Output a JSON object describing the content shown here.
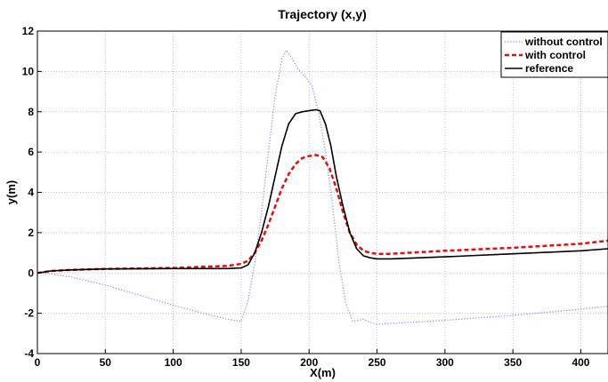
{
  "chart_data": {
    "type": "line",
    "title": "Trajectory (x,y)",
    "xlabel": "X(m)",
    "ylabel": "y(m)",
    "xlim": [
      0,
      420
    ],
    "ylim": [
      -4,
      12
    ],
    "xticks": [
      0,
      50,
      100,
      150,
      200,
      250,
      300,
      350,
      400
    ],
    "yticks": [
      -4,
      -2,
      0,
      2,
      4,
      6,
      8,
      10,
      12
    ],
    "grid": true,
    "legend_position": "top-right",
    "series": [
      {
        "name": "without control",
        "color": "#8a8ae6",
        "style": "dotted",
        "x": [
          0,
          10,
          25,
          50,
          75,
          100,
          125,
          140,
          150,
          155,
          160,
          165,
          170,
          175,
          180,
          183,
          187,
          192,
          197,
          202,
          207,
          212,
          217,
          222,
          227,
          232,
          240,
          245,
          250,
          260,
          300,
          350,
          400,
          420
        ],
        "y": [
          0,
          -0.05,
          -0.2,
          -0.6,
          -1.1,
          -1.6,
          -2.05,
          -2.3,
          -2.4,
          -1.4,
          0.5,
          3.0,
          6.0,
          8.8,
          10.6,
          11.05,
          10.7,
          10.1,
          9.75,
          9.3,
          8.0,
          6.0,
          3.5,
          0.5,
          -1.5,
          -2.4,
          -2.3,
          -2.45,
          -2.55,
          -2.5,
          -2.35,
          -2.1,
          -1.8,
          -1.65
        ]
      },
      {
        "name": "with control",
        "color": "#e01010",
        "style": "dashed",
        "x": [
          0,
          10,
          25,
          50,
          100,
          140,
          150,
          155,
          160,
          165,
          170,
          175,
          180,
          185,
          190,
          195,
          200,
          205,
          210,
          215,
          220,
          225,
          230,
          235,
          240,
          245,
          250,
          260,
          300,
          350,
          400,
          420
        ],
        "y": [
          0,
          0.1,
          0.15,
          0.2,
          0.25,
          0.35,
          0.45,
          0.6,
          1.0,
          1.6,
          2.4,
          3.3,
          4.2,
          4.9,
          5.4,
          5.7,
          5.8,
          5.85,
          5.75,
          5.2,
          4.2,
          3.0,
          2.0,
          1.4,
          1.1,
          1.0,
          0.95,
          0.95,
          1.1,
          1.25,
          1.45,
          1.6
        ]
      },
      {
        "name": "reference",
        "color": "#000000",
        "style": "solid",
        "x": [
          0,
          10,
          25,
          50,
          100,
          140,
          150,
          155,
          160,
          165,
          170,
          175,
          180,
          185,
          190,
          195,
          200,
          205,
          208,
          212,
          216,
          220,
          225,
          230,
          235,
          240,
          245,
          250,
          260,
          300,
          350,
          400,
          420
        ],
        "y": [
          0,
          0.1,
          0.15,
          0.2,
          0.22,
          0.22,
          0.25,
          0.4,
          1.0,
          2.0,
          3.3,
          4.8,
          6.3,
          7.4,
          7.9,
          8.0,
          8.05,
          8.1,
          8.05,
          7.4,
          6.3,
          4.8,
          3.3,
          2.0,
          1.2,
          0.85,
          0.75,
          0.7,
          0.7,
          0.8,
          0.95,
          1.1,
          1.2
        ]
      }
    ]
  }
}
